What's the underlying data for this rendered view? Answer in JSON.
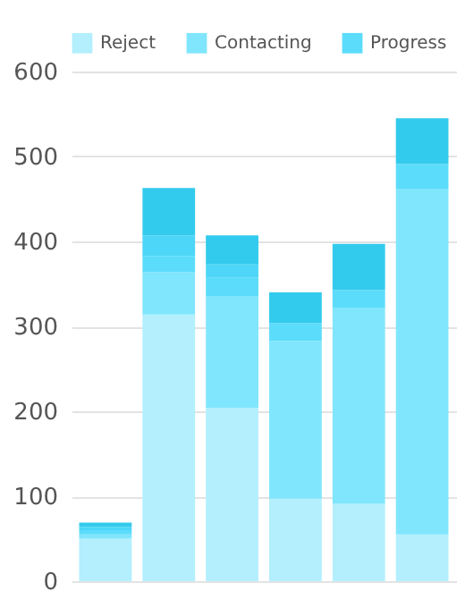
{
  "chart_data": {
    "type": "bar",
    "stacked": true,
    "categories": [
      null,
      null,
      null,
      null,
      null,
      null
    ],
    "series": [
      {
        "name": "Reject",
        "color": "#b3effd",
        "values": [
          50,
          314,
          204,
          97,
          91,
          55
        ]
      },
      {
        "name": "Contacting",
        "color": "#80e6fd",
        "values": [
          5,
          50,
          131,
          186,
          231,
          407
        ]
      },
      {
        "name": "Progress",
        "color": "#5cdcfb",
        "values": [
          5,
          19,
          22,
          21,
          21,
          29
        ]
      },
      {
        "color": "#4dd6f7",
        "values": [
          4,
          24,
          16,
          0,
          0,
          0
        ]
      },
      {
        "color": "#33cbed",
        "values": [
          5,
          56,
          34,
          36,
          54,
          54
        ]
      }
    ],
    "ylim": [
      0,
      600
    ],
    "yticks": [
      0,
      100,
      200,
      300,
      400,
      500,
      600
    ],
    "grid": "y",
    "legend": "top",
    "tick_labels": "y"
  }
}
